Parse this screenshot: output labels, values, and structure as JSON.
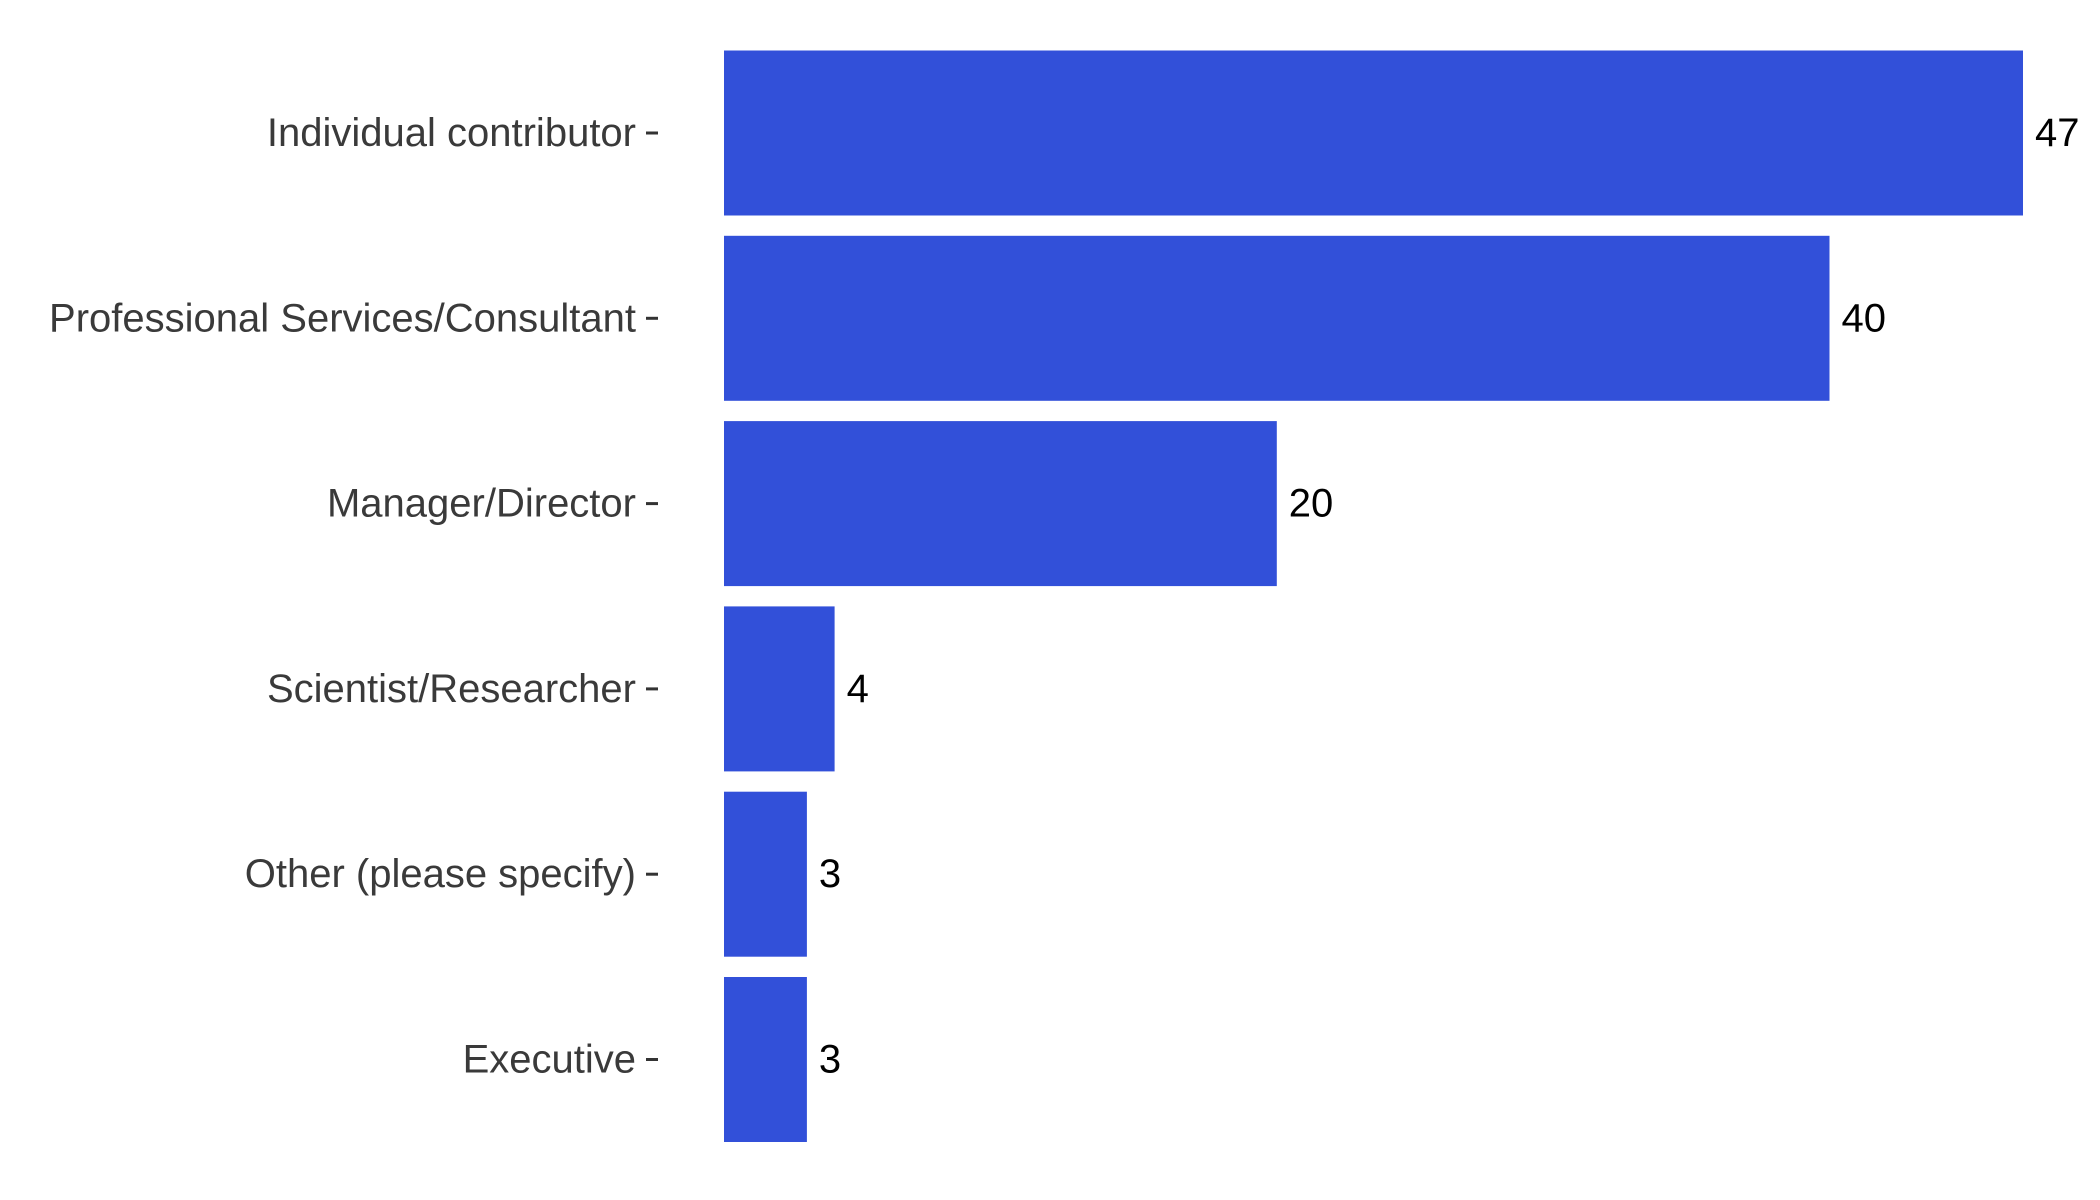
{
  "chart_data": {
    "type": "bar",
    "orientation": "horizontal",
    "categories": [
      "Individual contributor",
      "Professional Services/Consultant",
      "Manager/Director",
      "Scientist/Researcher",
      "Other (please specify)",
      "Executive"
    ],
    "values": [
      47,
      40,
      20,
      4,
      3,
      3
    ],
    "title": "",
    "xlabel": "",
    "ylabel": "",
    "xlim": [
      0,
      47
    ],
    "grid": false,
    "legend": "none",
    "bar_color": "#3250d9",
    "show_value_labels": true
  }
}
